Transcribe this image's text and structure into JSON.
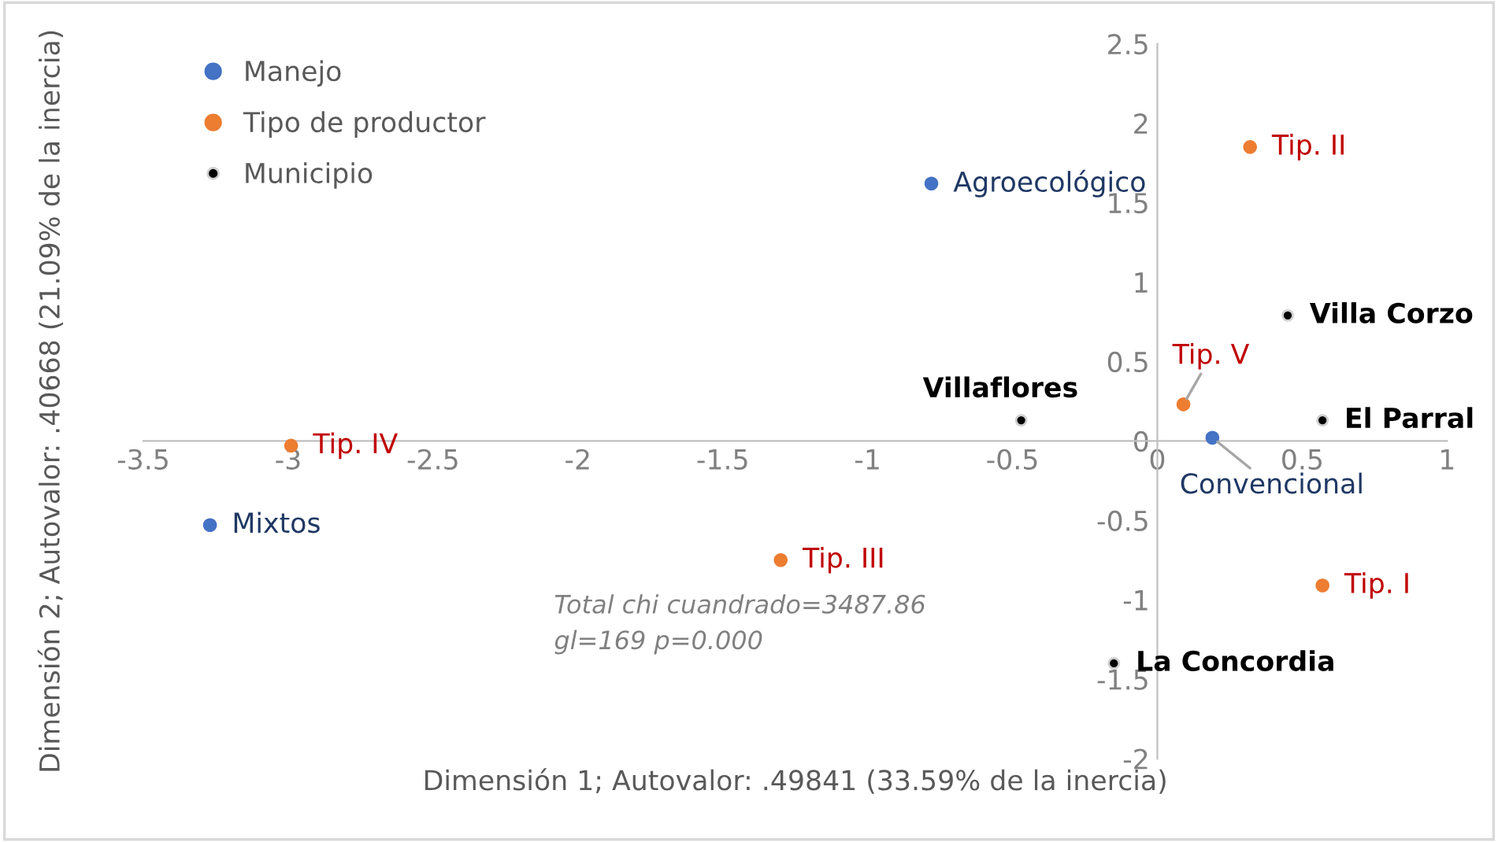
{
  "chart_data": {
    "type": "scatter",
    "xlabel": "Dimensión 1; Autovalor: .49841 (33.59% de la inercia)",
    "ylabel": "Dimensión 2; Autovalor: .40668 (21.09% de la inercia)",
    "xlim": [
      -3.5,
      1
    ],
    "xticks": [
      -3.5,
      -3,
      -2.5,
      -2,
      -1.5,
      -1,
      -0.5,
      0,
      0.5,
      1
    ],
    "ylim": [
      -2,
      2.5
    ],
    "yticks": [
      -2,
      -1.5,
      -1,
      -0.5,
      0,
      0.5,
      1,
      1.5,
      2,
      2.5
    ],
    "grid": false,
    "legend": "top left",
    "marker": "circle",
    "series": [
      {
        "name": "Manejo",
        "color": "#4472c4",
        "x": [
          -0.78,
          0.19,
          -3.27
        ],
        "values": [
          1.62,
          0.02,
          -0.53
        ],
        "value_labels": [
          "Agroecológico",
          "Convencional",
          "Mixtos"
        ]
      },
      {
        "name": "Tipo de productor",
        "color": "#ed7d31",
        "x": [
          0.32,
          0.09,
          0.57,
          -1.3,
          -2.99
        ],
        "values": [
          1.85,
          0.23,
          -0.91,
          -0.75,
          -0.03
        ],
        "value_labels": [
          "Tip. II",
          "Tip. V",
          "Tip. I",
          "Tip. III",
          "Tip. IV"
        ]
      },
      {
        "name": "Municipio",
        "color": "#000000",
        "x": [
          0.45,
          0.57,
          -0.47,
          -0.15
        ],
        "values": [
          0.79,
          0.13,
          0.13,
          -1.4
        ],
        "value_labels": [
          "Villa Corzo",
          "El Parral",
          "Villaflores",
          "La Concordia"
        ]
      }
    ],
    "annotations": [
      "Total chi cuandrado=3487.86\ngl=169 p=0.000"
    ]
  }
}
